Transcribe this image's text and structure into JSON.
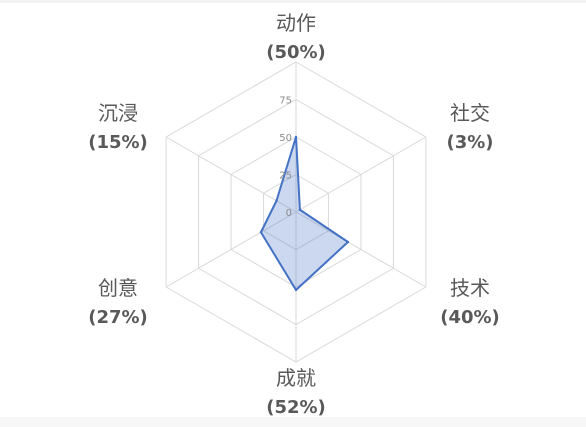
{
  "chart_data": {
    "type": "radar",
    "rlim": [
      0,
      100
    ],
    "ticks": [
      0,
      25,
      50,
      75
    ],
    "grid": true,
    "categories": [
      "动作",
      "社交",
      "技术",
      "成就",
      "创意",
      "沉浸"
    ],
    "category_percent_labels": [
      "(50%)",
      "(3%)",
      "(40%)",
      "(52%)",
      "(27%)",
      "(15%)"
    ],
    "values": [
      50,
      3,
      40,
      52,
      27,
      15
    ]
  },
  "colors": {
    "series_line": "#4472c4",
    "series_fill": "rgba(68,114,196,0.28)",
    "grid": "#d9d9d9",
    "label_text": "#595959",
    "tick_text": "#8c8c8c"
  }
}
